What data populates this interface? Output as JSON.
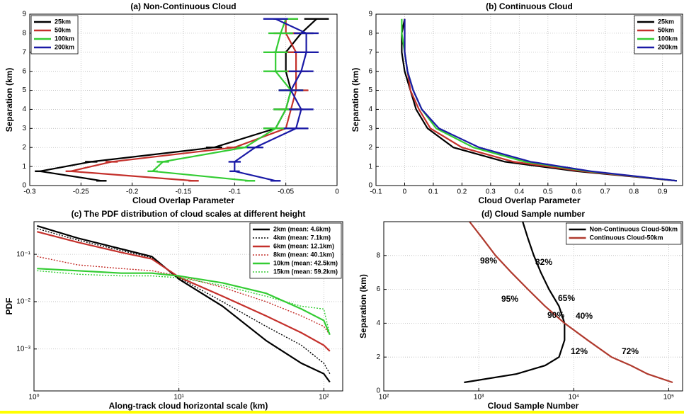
{
  "chart_data": [
    {
      "type": "line",
      "title": "(a) Non-Continuous Cloud",
      "xlabel": "Cloud Overlap Parameter",
      "ylabel": "Separation (km)",
      "y": [
        0.25,
        0.75,
        1.25,
        2,
        3,
        4,
        5,
        6,
        7,
        8,
        8.75
      ],
      "series": [
        {
          "name": "25km",
          "color": "#000000",
          "values": [
            -0.23,
            -0.29,
            -0.24,
            -0.12,
            -0.06,
            -0.05,
            -0.045,
            -0.05,
            -0.05,
            -0.035,
            -0.02
          ],
          "errors": [
            0.005,
            0.005,
            0.006,
            0.008,
            0.012,
            0.012,
            0.012,
            0.012,
            0.012,
            0.012,
            0.012
          ]
        },
        {
          "name": "50km",
          "color": "#c4302b",
          "values": [
            -0.14,
            -0.26,
            -0.22,
            -0.1,
            -0.05,
            -0.045,
            -0.04,
            -0.04,
            -0.04,
            -0.05,
            -0.05
          ],
          "errors": [
            0.005,
            0.005,
            0.006,
            0.008,
            0.012,
            0.012,
            0.012,
            0.012,
            0.012,
            0.012,
            0.012
          ]
        },
        {
          "name": "100km",
          "color": "#33cc33",
          "values": [
            -0.085,
            -0.18,
            -0.17,
            -0.09,
            -0.06,
            -0.05,
            -0.045,
            -0.06,
            -0.06,
            -0.055,
            -0.05
          ],
          "errors": [
            0.005,
            0.005,
            0.006,
            0.008,
            0.012,
            0.012,
            0.012,
            0.012,
            0.012,
            0.012,
            0.012
          ]
        },
        {
          "name": "200km",
          "color": "#1a1aa6",
          "values": [
            -0.06,
            -0.1,
            -0.1,
            -0.08,
            -0.04,
            -0.035,
            -0.045,
            -0.035,
            -0.03,
            -0.03,
            -0.06
          ],
          "errors": [
            0.005,
            0.005,
            0.006,
            0.008,
            0.012,
            0.012,
            0.012,
            0.012,
            0.012,
            0.012,
            0.012
          ]
        }
      ],
      "xlim": [
        -0.3,
        0
      ],
      "xticks": [
        -0.3,
        -0.25,
        -0.2,
        -0.15,
        -0.1,
        -0.05,
        0
      ],
      "ylim": [
        0,
        9
      ],
      "yticks": [
        0,
        1,
        2,
        3,
        4,
        5,
        6,
        7,
        8,
        9
      ],
      "grid": true,
      "legend": "upper left"
    },
    {
      "type": "line",
      "title": "(b) Continuous Cloud",
      "xlabel": "Cloud Overlap Parameter",
      "ylabel": "Separation (km)",
      "y": [
        0.25,
        0.75,
        1.25,
        2,
        3,
        4,
        5,
        6,
        7,
        8,
        8.75
      ],
      "series": [
        {
          "name": "25km",
          "color": "#000000",
          "values": [
            0.95,
            0.6,
            0.35,
            0.17,
            0.08,
            0.04,
            0.02,
            0,
            -0.01,
            -0.01,
            0
          ]
        },
        {
          "name": "50km",
          "color": "#c4302b",
          "values": [
            0.95,
            0.62,
            0.38,
            0.2,
            0.09,
            0.05,
            0.02,
            0.01,
            0,
            0,
            0
          ]
        },
        {
          "name": "100km",
          "color": "#33cc33",
          "values": [
            0.95,
            0.64,
            0.42,
            0.24,
            0.11,
            0.06,
            0.03,
            0.01,
            0,
            -0.01,
            -0.01
          ]
        },
        {
          "name": "200km",
          "color": "#1a1aa6",
          "values": [
            0.95,
            0.65,
            0.44,
            0.26,
            0.12,
            0.06,
            0.03,
            0.01,
            0,
            0,
            0
          ]
        }
      ],
      "xlim": [
        -0.1,
        0.97
      ],
      "xticks": [
        -0.1,
        0,
        0.1,
        0.2,
        0.3,
        0.4,
        0.5,
        0.6,
        0.7,
        0.8,
        0.9
      ],
      "ylim": [
        0,
        9
      ],
      "yticks": [
        0,
        1,
        2,
        3,
        4,
        5,
        6,
        7,
        8,
        9
      ],
      "grid": true,
      "legend": "upper right"
    },
    {
      "type": "line",
      "title": "(c) The PDF distribution of cloud scales at different height",
      "xlabel": "Along-track cloud horizontal scale (km)",
      "ylabel": "PDF",
      "x": [
        1.05,
        2,
        4,
        6.5,
        10,
        20,
        40,
        70,
        100,
        110
      ],
      "series": [
        {
          "name": "2km (mean: 4.6km)",
          "color": "#000000",
          "values": [
            0.4,
            0.22,
            0.13,
            0.09,
            0.03,
            0.008,
            0.0015,
            0.0005,
            0.0003,
            0.0002
          ]
        },
        {
          "name": "4km (mean: 7.1km)",
          "color": "#000000",
          "dash": true,
          "values": [
            0.35,
            0.2,
            0.12,
            0.085,
            0.032,
            0.01,
            0.003,
            0.0012,
            0.0005,
            0.0003
          ]
        },
        {
          "name": "6km (mean: 12.1km)",
          "color": "#c4302b",
          "values": [
            0.3,
            0.18,
            0.11,
            0.08,
            0.033,
            0.013,
            0.005,
            0.0022,
            0.0012,
            0.0009
          ]
        },
        {
          "name": "8km (mean: 40.1km)",
          "color": "#c4302b",
          "dash": true,
          "values": [
            0.09,
            0.06,
            0.05,
            0.045,
            0.035,
            0.02,
            0.01,
            0.005,
            0.003,
            0.002
          ]
        },
        {
          "name": "10km (mean: 42.5km)",
          "color": "#33cc33",
          "values": [
            0.05,
            0.045,
            0.04,
            0.04,
            0.035,
            0.025,
            0.015,
            0.007,
            0.004,
            0.002
          ]
        },
        {
          "name": "15km (mean: 59.2km)",
          "color": "#33cc33",
          "dash": true,
          "values": [
            0.045,
            0.038,
            0.035,
            0.035,
            0.032,
            0.022,
            0.013,
            0.008,
            0.007,
            0.002
          ]
        }
      ],
      "xscale": "log",
      "yscale": "log",
      "xlim": [
        1,
        135
      ],
      "xticks": [
        {
          "value": 1,
          "label": "10⁰"
        },
        {
          "value": 10,
          "label": "10¹"
        },
        {
          "value": 100,
          "label": "10²"
        }
      ],
      "ylim": [
        0.00013,
        0.49
      ],
      "yticks": [
        {
          "value": 0.001,
          "label": "10⁻³"
        },
        {
          "value": 0.01,
          "label": "10⁻²"
        },
        {
          "value": 0.1,
          "label": "10⁻¹"
        }
      ],
      "grid": true,
      "legend": "upper right"
    },
    {
      "type": "line",
      "title": "(d) Cloud Sample number",
      "xlabel": "Cloud Sample Number",
      "ylabel": "Separation (km)",
      "y": [
        0.5,
        1,
        1.5,
        2,
        3,
        4,
        5,
        6,
        7,
        8,
        9,
        10
      ],
      "series": [
        {
          "name": "Non-Continuous Cloud-50km",
          "color": "#000000",
          "values": [
            700,
            2500,
            5000,
            7000,
            8000,
            8000,
            7000,
            5500,
            4500,
            3800,
            3300,
            2900
          ]
        },
        {
          "name": "Continuous Cloud-50km",
          "color": "#b03a2e",
          "values": [
            110000,
            60000,
            40000,
            25000,
            14000,
            8000,
            5000,
            3300,
            2200,
            1500,
            1100,
            800
          ]
        }
      ],
      "xscale": "log",
      "xlim": [
        100,
        140000
      ],
      "xticks": [
        {
          "value": 100,
          "label": "10²"
        },
        {
          "value": 1000,
          "label": "10³"
        },
        {
          "value": 10000,
          "label": "10⁴"
        },
        {
          "value": 100000,
          "label": "10⁵"
        }
      ],
      "ylim": [
        0,
        10
      ],
      "yticks": [
        0,
        2,
        4,
        6,
        8
      ],
      "grid": true,
      "legend": "upper right",
      "annotations": [
        {
          "text": "98%",
          "color": "#b03a2e"
        },
        {
          "text": "82%",
          "color": "#000000"
        },
        {
          "text": "95%",
          "color": "#b03a2e"
        },
        {
          "text": "65%",
          "color": "#000000"
        },
        {
          "text": "90%",
          "color": "#b03a2e"
        },
        {
          "text": "40%",
          "color": "#000000"
        },
        {
          "text": "12%",
          "color": "#000000"
        },
        {
          "text": "72%",
          "color": "#b03a2e"
        }
      ]
    }
  ]
}
